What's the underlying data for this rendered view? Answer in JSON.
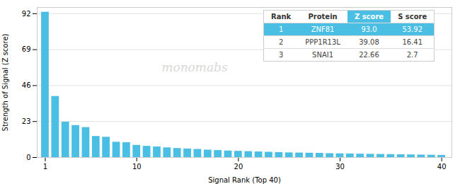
{
  "chart_data": {
    "type": "bar",
    "xlabel": "Signal Rank (Top 40)",
    "ylabel": "Strength of Signal (Z score)",
    "x": [
      1,
      2,
      3,
      4,
      5,
      6,
      7,
      8,
      9,
      10,
      11,
      12,
      13,
      14,
      15,
      16,
      17,
      18,
      19,
      20,
      21,
      22,
      23,
      24,
      25,
      26,
      27,
      28,
      29,
      30,
      31,
      32,
      33,
      34,
      35,
      36,
      37,
      38,
      39,
      40
    ],
    "values": [
      93.0,
      39.08,
      22.66,
      20.5,
      19.2,
      13.5,
      13.0,
      9.8,
      9.5,
      7.8,
      7.2,
      6.8,
      6.2,
      5.8,
      5.5,
      5.2,
      4.8,
      4.5,
      4.2,
      4.0,
      3.8,
      3.6,
      3.4,
      3.2,
      3.0,
      2.9,
      2.8,
      2.7,
      2.5,
      2.4,
      2.3,
      2.2,
      2.1,
      2.0,
      1.9,
      1.8,
      1.7,
      1.6,
      1.5,
      1.4
    ],
    "color": "#4bbee3",
    "xlim": [
      0.2,
      41
    ],
    "xticks": [
      1,
      10,
      20,
      30,
      40
    ],
    "ylim": [
      0,
      96
    ],
    "yticks": [
      0,
      23,
      46,
      69,
      92
    ],
    "grid": true,
    "annotations": [
      {
        "text": "monomabs",
        "color": "#d8d8d8"
      }
    ],
    "table": {
      "headers": [
        "Rank",
        "Protein",
        "Z score",
        "S score"
      ],
      "rows": [
        [
          "1",
          "ZNF81",
          "93.0",
          "53.92"
        ],
        [
          "2",
          "PPP1R13L",
          "39.08",
          "16.41"
        ],
        [
          "3",
          "SNAI1",
          "22.66",
          "2.7"
        ]
      ],
      "header_color": "#4bbee3",
      "highlight_color": "#4bbee3"
    }
  }
}
